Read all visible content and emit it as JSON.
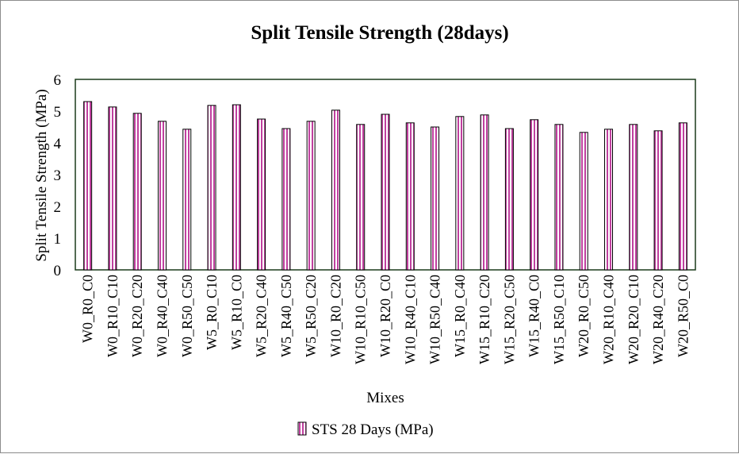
{
  "chart_data": {
    "type": "bar",
    "title": "Split Tensile Strength (28days)",
    "xlabel": "Mixes",
    "ylabel": "Split Tensile Strength  (MPa)",
    "ylim": [
      0,
      6
    ],
    "yticks": [
      0,
      1,
      2,
      3,
      4,
      5,
      6
    ],
    "grid": false,
    "legend_position": "bottom",
    "colors": {
      "bar_stripe": "#c0409f",
      "bar_outline": "#000000",
      "plot_border": "#1a3a1a"
    },
    "categories": [
      "W0_R0_C0",
      "W0_R10_C10",
      "W0_R20_C20",
      "W0_R40_C40",
      "W0_R50_C50",
      "W5_R0_C10",
      "W5_R10_C0",
      "W5_R20_C40",
      "W5_R40_C50",
      "W5_R50_C20",
      "W10_R0_C20",
      "W10_R10_C50",
      "W10_R20_C0",
      "W10_R40_C10",
      "W10_R50_C40",
      "W15_R0_C40",
      "W15_R10_C20",
      "W15_R20_C50",
      "W15_R40_C0",
      "W15_R50_C10",
      "W20_R0_C50",
      "W20_R10_C40",
      "W20_R20_C10",
      "W20_R40_C20",
      "W20_R50_C0"
    ],
    "series": [
      {
        "name": "STS 28 Days (MPa)",
        "values": [
          5.3,
          5.13,
          4.93,
          4.68,
          4.43,
          5.18,
          5.2,
          4.75,
          4.45,
          4.68,
          5.03,
          4.58,
          4.9,
          4.63,
          4.5,
          4.83,
          4.88,
          4.45,
          4.73,
          4.58,
          4.33,
          4.43,
          4.58,
          4.38,
          4.63
        ]
      }
    ]
  }
}
